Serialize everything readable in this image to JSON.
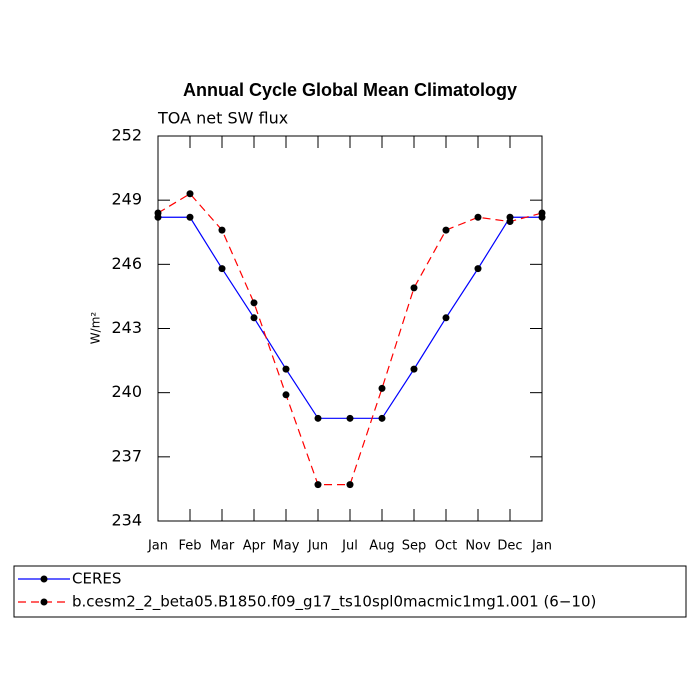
{
  "chart_data": {
    "type": "line",
    "title": "Annual Cycle Global Mean Climatology",
    "subtitle": "TOA net SW flux",
    "ylabel": "W/m²",
    "categories": [
      "Jan",
      "Feb",
      "Mar",
      "Apr",
      "May",
      "Jun",
      "Jul",
      "Aug",
      "Sep",
      "Oct",
      "Nov",
      "Dec",
      "Jan"
    ],
    "series": [
      {
        "name": "CERES",
        "color": "#0000ff",
        "linestyle": "solid",
        "values": [
          248.2,
          248.2,
          245.8,
          243.5,
          241.1,
          238.8,
          238.8,
          238.8,
          241.1,
          243.5,
          245.8,
          248.2,
          248.2
        ]
      },
      {
        "name": "b.cesm2_2_beta05.B1850.f09_g17_ts10spl0macmic1mg1.001 (6−10)",
        "color": "#ff0000",
        "linestyle": "dashed",
        "values": [
          248.4,
          249.3,
          247.6,
          244.2,
          239.9,
          235.7,
          235.7,
          240.2,
          244.9,
          247.6,
          248.2,
          248.0,
          248.4
        ]
      }
    ],
    "ylim": [
      234,
      252
    ],
    "yticks": [
      234,
      237,
      240,
      243,
      246,
      249,
      252
    ],
    "marker_color": "#000000"
  }
}
